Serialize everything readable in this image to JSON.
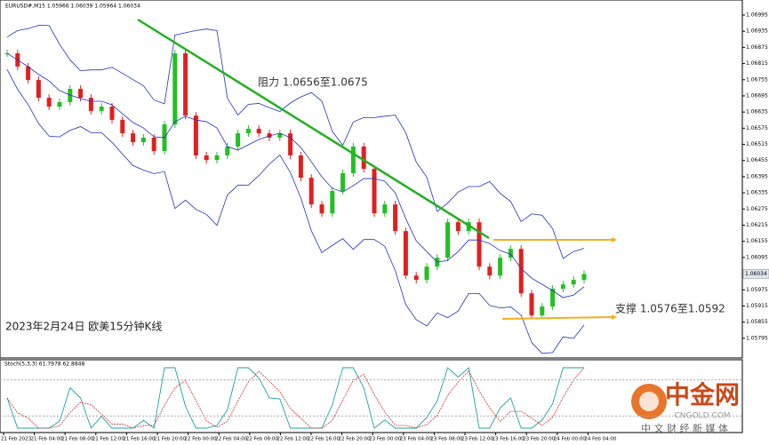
{
  "chart_data": {
    "type": "candlestick",
    "header": "EURUSD#,M15  1.05966 1.06039 1.05964 1.06034",
    "title": "2023年2月24日 欧美15分钟K线",
    "annotations": {
      "resistance": "阻力 1.0656至1.0675",
      "support": "支撑 1.0576至1.0592"
    },
    "indicator_label": "Stoch(5,3,3) 61.7978 62.8848",
    "last_price": 1.06034,
    "values": [
      1.06853,
      1.06804,
      1.06754,
      1.06688,
      1.06655,
      1.06672,
      1.06721,
      1.06688,
      1.06639,
      1.06655,
      1.06606,
      1.06556,
      1.06523,
      1.0654,
      1.0649,
      1.06589,
      1.06853,
      1.06622,
      1.06474,
      1.06457,
      1.06474,
      1.06507,
      1.06556,
      1.06573,
      1.06556,
      1.0654,
      1.06556,
      1.06474,
      1.06391,
      1.06292,
      1.06259,
      1.06342,
      1.06408,
      1.06507,
      1.06424,
      1.06259,
      1.06292,
      1.06193,
      1.06028,
      1.06012,
      1.06061,
      1.06094,
      1.06226,
      1.06193,
      1.06226,
      1.06061,
      1.06028,
      1.06094,
      1.06127,
      1.05962,
      1.0588,
      1.05913,
      1.05979,
      1.05995,
      1.06012,
      1.06034
    ],
    "x_labels": [
      "21 Feb 2023",
      "21 Feb 04:00",
      "21 Feb 08:00",
      "21 Feb 12:00",
      "21 Feb 16:00",
      "21 Feb 20:00",
      "22 Feb 00:00",
      "22 Feb 04:00",
      "22 Feb 08:00",
      "22 Feb 12:00",
      "22 Feb 16:00",
      "22 Feb 20:00",
      "23 Feb 00:00",
      "23 Feb 04:00",
      "23 Feb 08:00",
      "23 Feb 12:00",
      "23 Feb 16:00",
      "23 Feb 20:00",
      "24 Feb 00:00",
      "24 Feb 04:00"
    ],
    "ylim": [
      1.05722,
      1.07051
    ],
    "yticks": [
      1.06995,
      1.06935,
      1.06875,
      1.06815,
      1.06755,
      1.06695,
      1.06635,
      1.06575,
      1.06515,
      1.06455,
      1.06395,
      1.06335,
      1.06275,
      1.06215,
      1.06155,
      1.06095,
      1.05975,
      1.05915,
      1.05855,
      1.05795
    ],
    "up_color": "#22c022",
    "down_color": "#e02020",
    "watermark": {
      "name": "中金网",
      "site": "CNGOLD.COM",
      "slogan": "中 文 财 经 新 媒 体"
    }
  }
}
